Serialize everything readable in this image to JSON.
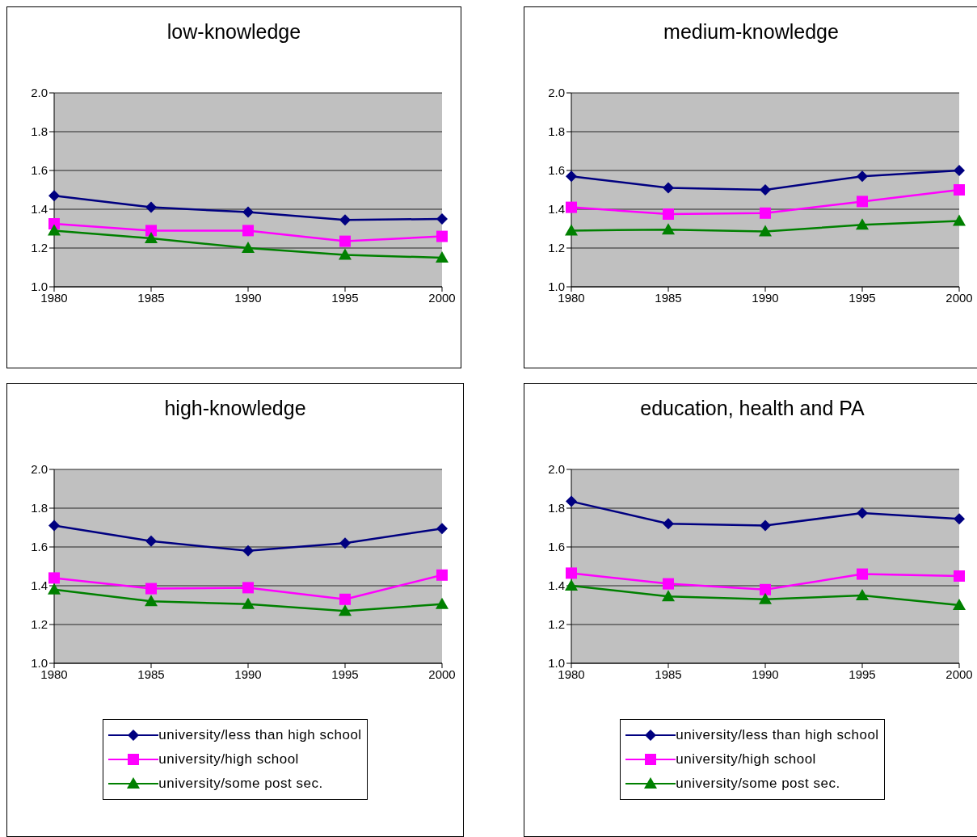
{
  "chart_data": [
    {
      "type": "line",
      "title": "low-knowledge",
      "categories": [
        "1980",
        "1985",
        "1990",
        "1995",
        "2000"
      ],
      "series": [
        {
          "color": "#000080",
          "marker": "diamond",
          "values": [
            1.47,
            1.41,
            1.385,
            1.345,
            1.35
          ]
        },
        {
          "color": "#ff00ff",
          "marker": "square",
          "values": [
            1.325,
            1.29,
            1.29,
            1.235,
            1.26
          ]
        },
        {
          "color": "#008000",
          "marker": "triangle",
          "values": [
            1.29,
            1.25,
            1.2,
            1.165,
            1.15
          ]
        }
      ],
      "ylim": [
        1,
        2
      ],
      "yticks": [
        {
          "value": 1,
          "label": "1.0"
        },
        {
          "value": 1.2,
          "label": "1.2"
        },
        {
          "value": 1.4,
          "label": "1.4"
        },
        {
          "value": 1.6,
          "label": "1.6"
        },
        {
          "value": 1.8,
          "label": "1.8"
        },
        {
          "value": 2,
          "label": "2.0"
        }
      ],
      "grid": "y"
    },
    {
      "type": "line",
      "title": "medium-knowledge",
      "categories": [
        "1980",
        "1985",
        "1990",
        "1995",
        "2000"
      ],
      "series": [
        {
          "color": "#000080",
          "marker": "diamond",
          "values": [
            1.57,
            1.51,
            1.5,
            1.57,
            1.6
          ]
        },
        {
          "color": "#ff00ff",
          "marker": "square",
          "values": [
            1.41,
            1.375,
            1.38,
            1.44,
            1.5
          ]
        },
        {
          "color": "#008000",
          "marker": "triangle",
          "values": [
            1.29,
            1.295,
            1.285,
            1.32,
            1.34
          ]
        }
      ],
      "ylim": [
        1,
        2
      ],
      "yticks": [
        {
          "value": 1,
          "label": "1.0"
        },
        {
          "value": 1.2,
          "label": "1.2"
        },
        {
          "value": 1.4,
          "label": "1.4"
        },
        {
          "value": 1.6,
          "label": "1.6"
        },
        {
          "value": 1.8,
          "label": "1.8"
        },
        {
          "value": 2,
          "label": "2.0"
        }
      ],
      "grid": "y"
    },
    {
      "type": "line",
      "title": "high-knowledge",
      "categories": [
        "1980",
        "1985",
        "1990",
        "1995",
        "2000"
      ],
      "series": [
        {
          "name": "university/less than high school",
          "color": "#000080",
          "marker": "diamond",
          "values": [
            1.71,
            1.63,
            1.58,
            1.62,
            1.695
          ]
        },
        {
          "name": "university/high school",
          "color": "#ff00ff",
          "marker": "square",
          "values": [
            1.44,
            1.385,
            1.39,
            1.33,
            1.455
          ]
        },
        {
          "name": "university/some post sec.",
          "color": "#008000",
          "marker": "triangle",
          "values": [
            1.38,
            1.32,
            1.305,
            1.27,
            1.305
          ]
        }
      ],
      "ylim": [
        1,
        2
      ],
      "yticks": [
        {
          "value": 1,
          "label": "1.0"
        },
        {
          "value": 1.2,
          "label": "1.2"
        },
        {
          "value": 1.4,
          "label": "1.4"
        },
        {
          "value": 1.6,
          "label": "1.6"
        },
        {
          "value": 1.8,
          "label": "1.8"
        },
        {
          "value": 2,
          "label": "2.0"
        }
      ],
      "grid": "y",
      "legend": "bottom"
    },
    {
      "type": "line",
      "title": "education, health and PA",
      "categories": [
        "1980",
        "1985",
        "1990",
        "1995",
        "2000"
      ],
      "series": [
        {
          "name": "university/less than high school",
          "color": "#000080",
          "marker": "diamond",
          "values": [
            1.835,
            1.72,
            1.71,
            1.775,
            1.745
          ]
        },
        {
          "name": "university/high school",
          "color": "#ff00ff",
          "marker": "square",
          "values": [
            1.465,
            1.41,
            1.38,
            1.46,
            1.45
          ]
        },
        {
          "name": "university/some post sec.",
          "color": "#008000",
          "marker": "triangle",
          "values": [
            1.4,
            1.345,
            1.33,
            1.35,
            1.3
          ]
        }
      ],
      "ylim": [
        1,
        2
      ],
      "yticks": [
        {
          "value": 1,
          "label": "1.0"
        },
        {
          "value": 1.2,
          "label": "1.2"
        },
        {
          "value": 1.4,
          "label": "1.4"
        },
        {
          "value": 1.6,
          "label": "1.6"
        },
        {
          "value": 1.8,
          "label": "1.8"
        },
        {
          "value": 2,
          "label": "2.0"
        }
      ],
      "grid": "y",
      "legend": "bottom"
    }
  ]
}
